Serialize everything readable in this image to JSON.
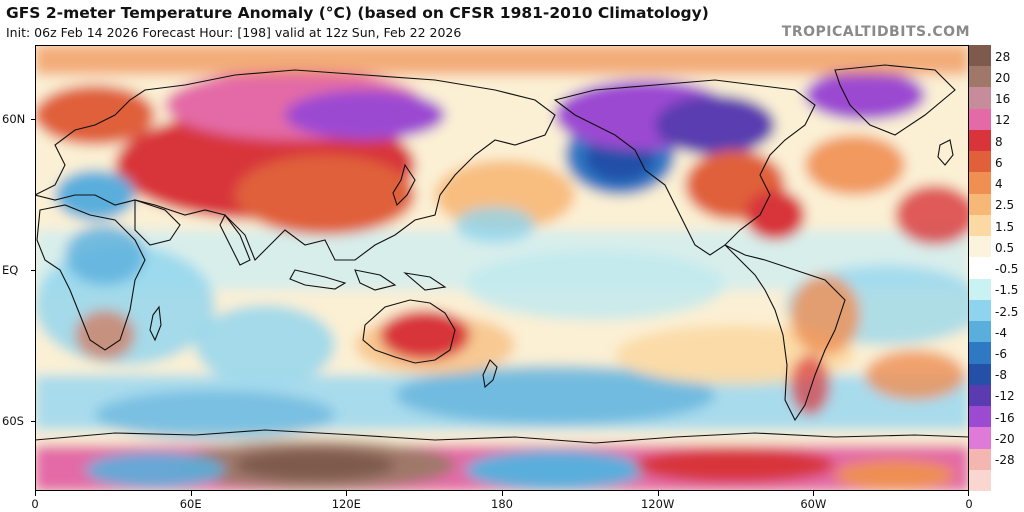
{
  "header": {
    "title": "GFS 2-meter Temperature Anomaly (°C) (based on CFSR 1981-2010 Climatology)",
    "subtitle": "Init: 06z Feb 14 2026   Forecast Hour: [198]   valid at 12z Sun, Feb 22 2026",
    "brand": "TROPICALTIDBITS.COM"
  },
  "map": {
    "lat_labels": [
      "60N",
      "EQ",
      "60S"
    ],
    "lon_labels": [
      "0",
      "60E",
      "120E",
      "180",
      "120W",
      "60W",
      "0"
    ],
    "lat_values": [
      60,
      0,
      -60
    ],
    "lon_values": [
      0,
      60,
      120,
      180,
      240,
      300,
      360
    ]
  },
  "colorbar": {
    "labels": [
      "28",
      "20",
      "16",
      "12",
      "8",
      "6",
      "4",
      "2.5",
      "1.5",
      "0.5",
      "-0.5",
      "-1.5",
      "-2.5",
      "-4",
      "-6",
      "-8",
      "-12",
      "-16",
      "-20",
      "-28"
    ],
    "colors": [
      "#7d5a4c",
      "#a0786a",
      "#c78c9a",
      "#e36aa6",
      "#d8343a",
      "#e0603a",
      "#ef8f52",
      "#f7b877",
      "#fbd9a3",
      "#fbf3dc",
      "#ffffff",
      "#c9f2f2",
      "#8ed4ee",
      "#5aaedc",
      "#2f78c4",
      "#2450a8",
      "#5a3cb0",
      "#9c4ad2",
      "#e07ad8",
      "#f3b6b0",
      "#f9d6d0"
    ]
  }
}
